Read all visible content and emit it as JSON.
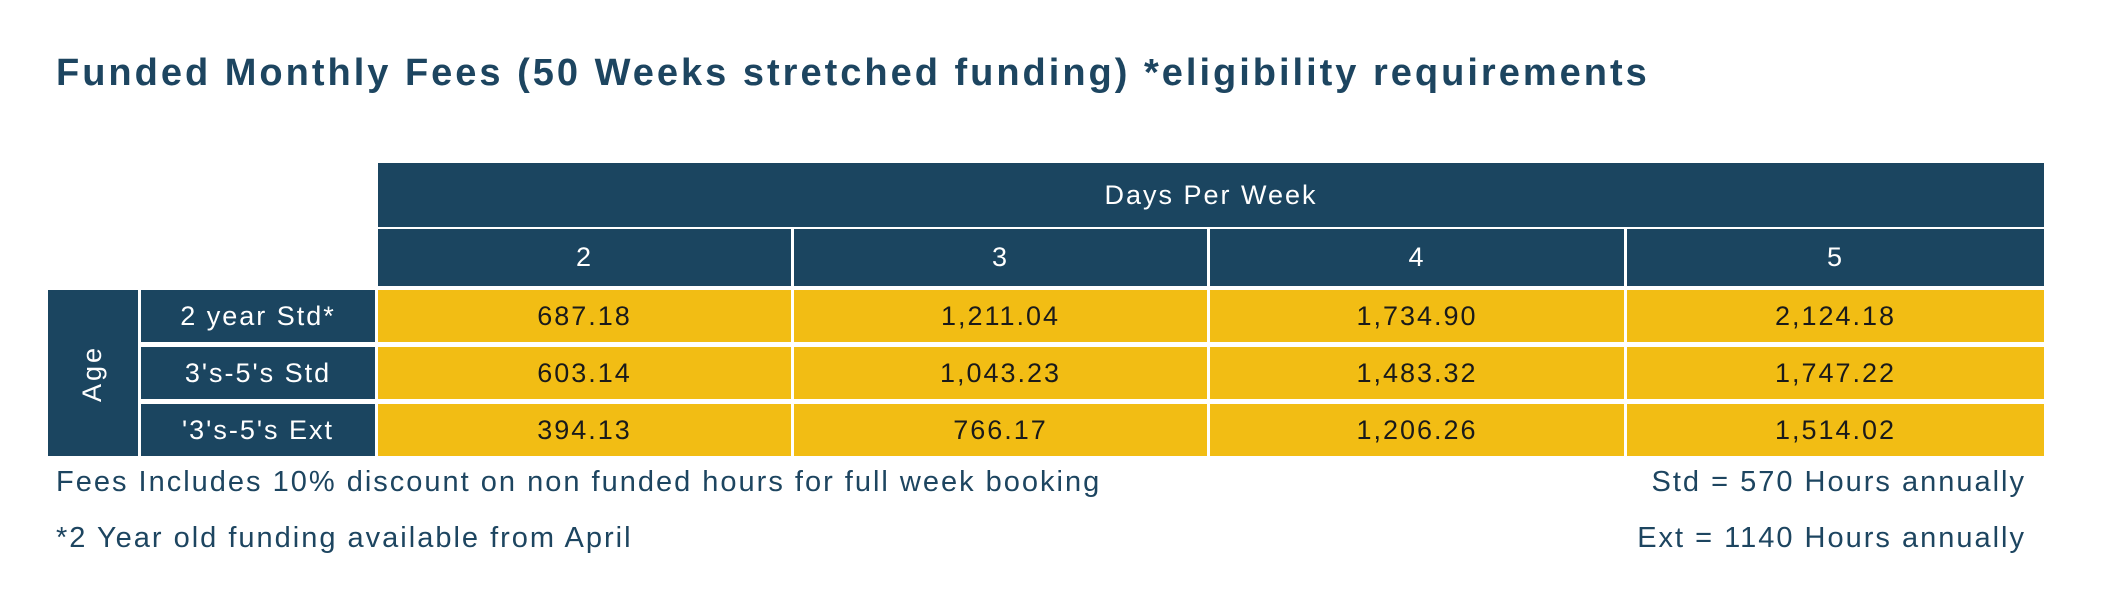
{
  "title": "Funded Monthly Fees (50 Weeks stretched funding) *eligibility requirements",
  "table": {
    "group_header": "Days Per Week",
    "columns": [
      "2",
      "3",
      "4",
      "5"
    ],
    "row_group_label": "Age",
    "rows": [
      {
        "label": "2 year Std*",
        "values": [
          "687.18",
          "1,211.04",
          "1,734.90",
          "2,124.18"
        ]
      },
      {
        "label": "3's-5's Std",
        "values": [
          "603.14",
          "1,043.23",
          "1,483.32",
          "1,747.22"
        ]
      },
      {
        "label": "'3's-5's Ext",
        "values": [
          "394.13",
          "766.17",
          "1,206.26",
          "1,514.02"
        ]
      }
    ]
  },
  "notes": {
    "discount": "Fees Includes 10% discount on non funded hours for full week booking",
    "funding": "*2 Year old funding available from April",
    "std_hours": "Std = 570 Hours annually",
    "ext_hours": "Ext = 1140 Hours annually"
  },
  "colors": {
    "header_bg": "#1b4560",
    "value_bg": "#f2bd14",
    "title_text": "#1d4560"
  }
}
